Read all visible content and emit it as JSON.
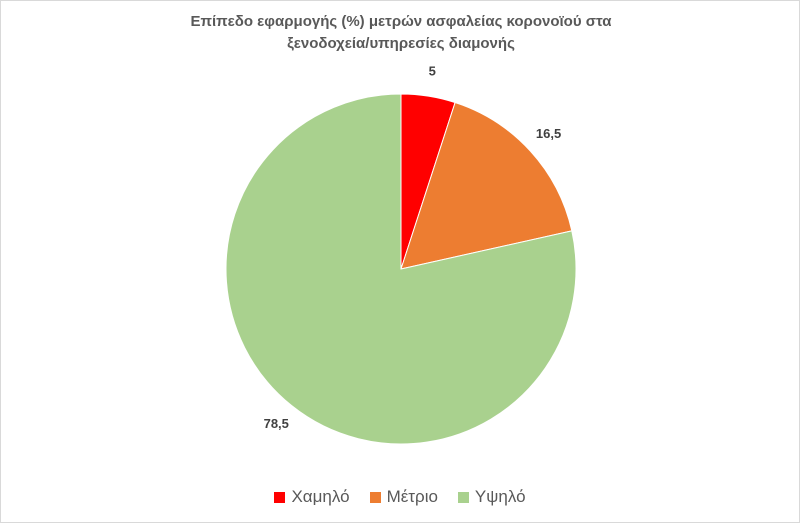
{
  "chart_data": {
    "type": "pie",
    "title": "Επίπεδο εφαρμογής (%) μετρών ασφαλείας κορονοϊού στα ξενοδοχεία/υπηρεσίες διαμονής",
    "categories": [
      "Χαμηλό",
      "Μέτριο",
      "Υψηλό"
    ],
    "values": [
      5,
      16.5,
      78.5
    ],
    "value_labels": [
      "5",
      "16,5",
      "78,5"
    ],
    "colors": [
      "#ff0000",
      "#ed7d31",
      "#a9d18e"
    ],
    "legend": "bottom"
  }
}
